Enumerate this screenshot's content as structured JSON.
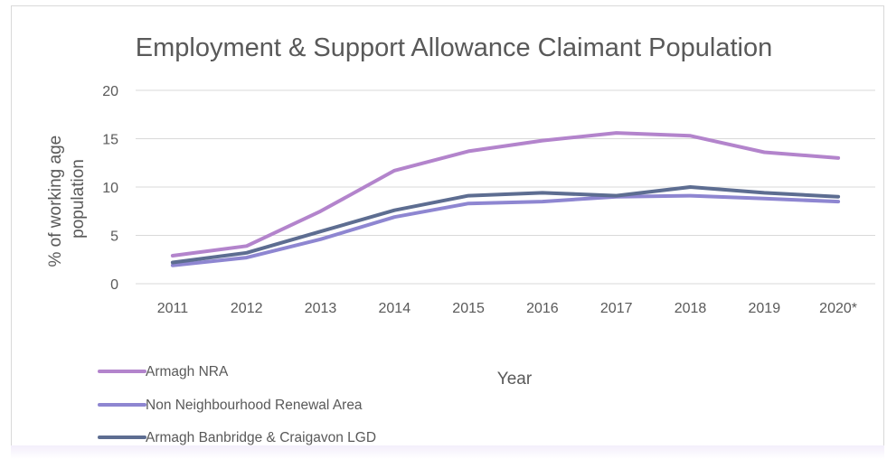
{
  "chart_data": {
    "type": "line",
    "title": "Employment & Support Allowance Claimant Population",
    "xlabel": "Year",
    "ylabel_lines": [
      "% of working age",
      "population"
    ],
    "categories": [
      "2011",
      "2012",
      "2013",
      "2014",
      "2015",
      "2016",
      "2017",
      "2018",
      "2019",
      "2020*"
    ],
    "ylim": [
      0,
      20
    ],
    "yticks": [
      "0",
      "5",
      "10",
      "15",
      "20"
    ],
    "grid": true,
    "legend_position": "bottom-left",
    "series": [
      {
        "name": "Armagh NRA",
        "color": "#b384cc",
        "values": [
          2.9,
          3.9,
          7.5,
          11.7,
          13.7,
          14.8,
          15.6,
          15.3,
          13.6,
          13.0
        ]
      },
      {
        "name": "Non Neighbourhood Renewal Area",
        "color": "#8e86d1",
        "values": [
          1.9,
          2.7,
          4.6,
          6.9,
          8.3,
          8.5,
          9.0,
          9.1,
          8.8,
          8.5
        ]
      },
      {
        "name": "Armagh Banbridge & Craigavon LGD",
        "color": "#5d6d91",
        "values": [
          2.2,
          3.2,
          5.4,
          7.6,
          9.1,
          9.4,
          9.1,
          10.0,
          9.4,
          9.0
        ]
      }
    ]
  }
}
